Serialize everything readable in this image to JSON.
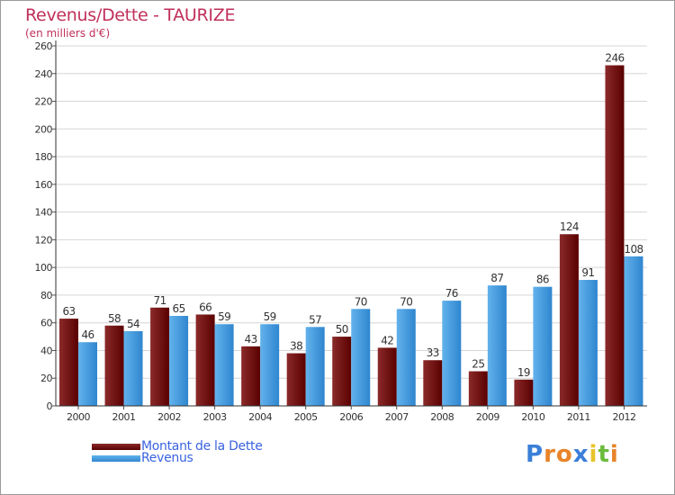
{
  "title": "Revenus/Dette - TAURIZE",
  "subtitle": "(en milliers d'€)",
  "colors": {
    "debt_light": "#8b2a2a",
    "debt_dark": "#5a0000",
    "rev_light": "#62b2ec",
    "rev_dark": "#2f86cf",
    "title": "#c0305a",
    "legend_text": "#3a63e0"
  },
  "chart_data": {
    "type": "bar",
    "title": "Revenus/Dette - TAURIZE",
    "ylabel": "(en milliers d'€)",
    "xlabel": "",
    "categories": [
      "2000",
      "2001",
      "2002",
      "2003",
      "2004",
      "2005",
      "2006",
      "2007",
      "2008",
      "2009",
      "2010",
      "2011",
      "2012"
    ],
    "series": [
      {
        "name": "Montant de la Dette",
        "values": [
          63,
          58,
          71,
          66,
          43,
          38,
          50,
          42,
          33,
          25,
          19,
          124,
          246
        ]
      },
      {
        "name": "Revenus",
        "values": [
          46,
          54,
          65,
          59,
          59,
          57,
          70,
          70,
          76,
          87,
          86,
          91,
          108
        ]
      }
    ],
    "ylim": [
      0,
      260
    ],
    "yticks": [
      0,
      20,
      40,
      60,
      80,
      100,
      120,
      140,
      160,
      180,
      200,
      220,
      240,
      260
    ],
    "grid": true,
    "legend": "bottom-left"
  },
  "legend": {
    "debt_label": "Montant de la Dette",
    "revenue_label": "Revenus"
  },
  "logo": {
    "letters": [
      "P",
      "r",
      "o",
      "x",
      "i",
      "t",
      "i"
    ],
    "colors": [
      "#3a7fd8",
      "#e8842a",
      "#e8842a",
      "#3a7fd8",
      "#e8c32a",
      "#6cbb3c",
      "#e8842a"
    ]
  }
}
